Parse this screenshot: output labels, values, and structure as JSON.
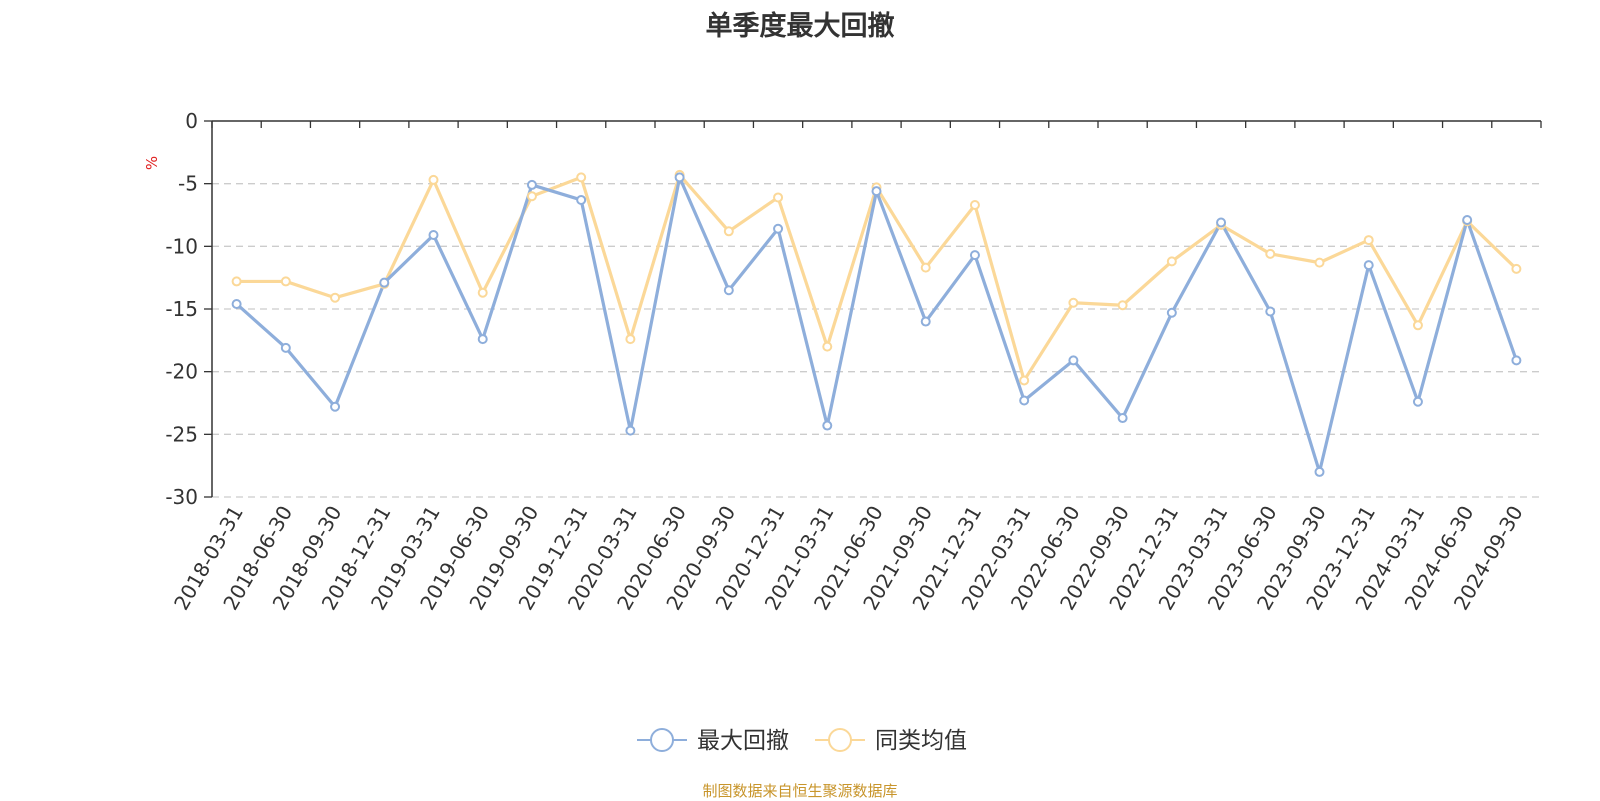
{
  "chart_data": {
    "type": "line",
    "title": "单季度最大回撤",
    "ylabel": "%",
    "ylim": [
      -30,
      0
    ],
    "yticks": [
      0,
      -5,
      -10,
      -15,
      -20,
      -25,
      -30
    ],
    "grid": true,
    "legend_position": "bottom",
    "categories": [
      "2018-03-31",
      "2018-06-30",
      "2018-09-30",
      "2018-12-31",
      "2019-03-31",
      "2019-06-30",
      "2019-09-30",
      "2019-12-31",
      "2020-03-31",
      "2020-06-30",
      "2020-09-30",
      "2020-12-31",
      "2021-03-31",
      "2021-06-30",
      "2021-09-30",
      "2021-12-31",
      "2022-03-31",
      "2022-06-30",
      "2022-09-30",
      "2022-12-31",
      "2023-03-31",
      "2023-06-30",
      "2023-09-30",
      "2023-12-31",
      "2024-03-31",
      "2024-06-30",
      "2024-09-30"
    ],
    "series": [
      {
        "name": "最大回撤",
        "color": "#8eaedb",
        "values": [
          -14.6,
          -18.1,
          -22.8,
          -12.9,
          -9.1,
          -17.4,
          -5.1,
          -6.3,
          -24.7,
          -4.5,
          -13.5,
          -8.6,
          -24.3,
          -5.6,
          -16.0,
          -10.7,
          -22.3,
          -19.1,
          -23.7,
          -15.3,
          -8.1,
          -15.2,
          -28.0,
          -11.5,
          -22.4,
          -7.9,
          -19.1
        ]
      },
      {
        "name": "同类均值",
        "color": "#fbd898",
        "values": [
          -12.8,
          -12.8,
          -14.1,
          -13.0,
          -4.7,
          -13.7,
          -6.0,
          -4.5,
          -17.4,
          -4.3,
          -8.8,
          -6.1,
          -18.0,
          -5.3,
          -11.7,
          -6.7,
          -20.7,
          -14.5,
          -14.7,
          -11.2,
          -8.3,
          -10.6,
          -11.3,
          -9.5,
          -16.3,
          -8.0,
          -11.8
        ]
      }
    ]
  },
  "source_note": "制图数据来自恒生聚源数据库"
}
